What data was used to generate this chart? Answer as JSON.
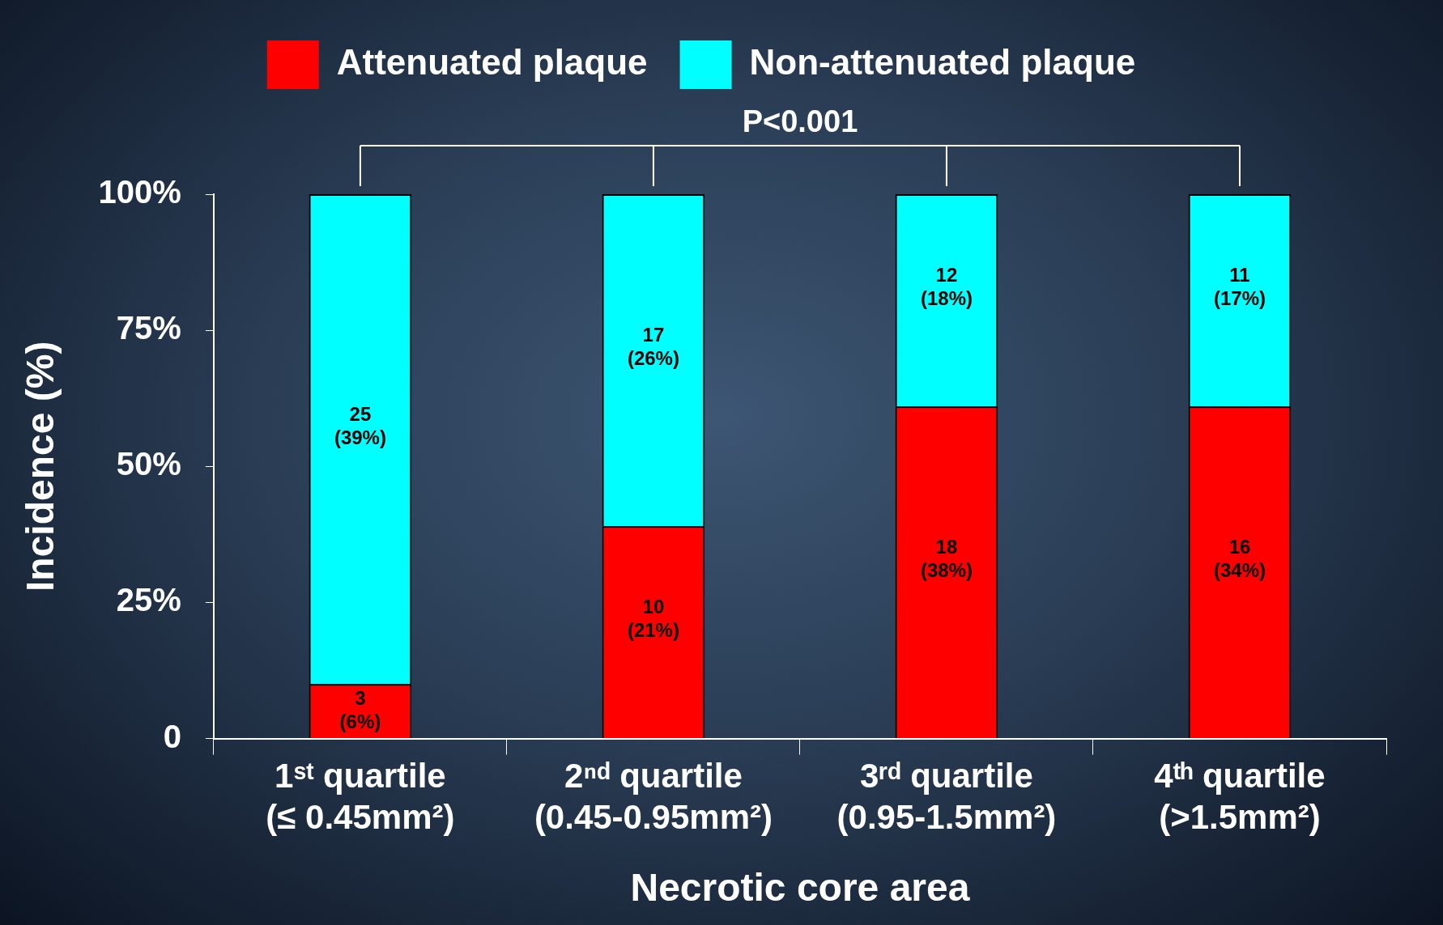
{
  "chart_data": {
    "type": "bar",
    "stacked": true,
    "xlabel": "Necrotic core area",
    "ylabel": "Incidence (%)",
    "categories": [
      "1ˢᵗ quartile\n(≤ 0.45mm²)",
      "2ⁿᵈ quartile\n(0.45-0.95mm²)",
      "3ʳᵈ quartile\n(0.95-1.5mm²)",
      "4ᵗʰ quartile\n(>1.5mm²)"
    ],
    "series": [
      {
        "name": "Attenuated plaque",
        "color": "#ff0000",
        "values": [
          10,
          39,
          61,
          61
        ]
      },
      {
        "name": "Non-attenuated plaque",
        "color": "#00ffff",
        "values": [
          90,
          61,
          39,
          39
        ]
      }
    ],
    "ylim": [
      0,
      100
    ],
    "yticks": [
      0,
      {
        "value": 25,
        "label": "25%"
      },
      {
        "value": 50,
        "label": "50%"
      },
      {
        "value": 75,
        "label": "75%"
      },
      {
        "value": 100,
        "label": "100%"
      }
    ],
    "grid": false,
    "legend": "top",
    "annotations": [
      "P<0.001",
      "3\n(6%)",
      "10\n(21%)",
      "18\n(38%)",
      "16\n(34%)",
      "25\n(39%)",
      "17\n(26%)",
      "12\n(18%)",
      "11\n(17%)"
    ]
  }
}
